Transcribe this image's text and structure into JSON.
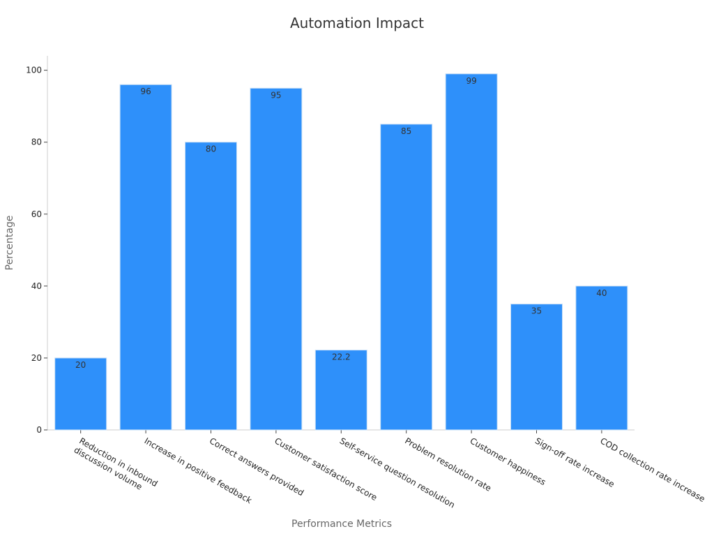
{
  "chart_data": {
    "type": "bar",
    "title": "Automation Impact",
    "xlabel": "Performance Metrics",
    "ylabel": "Percentage",
    "categories": [
      "Reduction in inbound discussion volume",
      "Increase in positive feedback",
      "Correct answers provided",
      "Customer satisfaction score",
      "Self-service question resolution",
      "Problem resolution rate",
      "Customer happiness",
      "Sign-off rate increase",
      "COD collection rate increase"
    ],
    "category_label_lines": [
      [
        "Reduction in inbound",
        "discussion volume"
      ],
      [
        "Increase in positive feedback"
      ],
      [
        "Correct answers provided"
      ],
      [
        "Customer satisfaction score"
      ],
      [
        "Self-service question resolution"
      ],
      [
        "Problem resolution rate"
      ],
      [
        "Customer happiness"
      ],
      [
        "Sign-off rate increase"
      ],
      [
        "COD collection rate increase"
      ]
    ],
    "values": [
      20,
      96,
      80,
      95,
      22.2,
      85,
      99,
      35,
      40
    ],
    "data_labels": [
      "20",
      "96",
      "80",
      "95",
      "22.2",
      "85",
      "99",
      "35",
      "40"
    ],
    "ylim": [
      0,
      104
    ],
    "yticks": [
      0,
      20,
      40,
      60,
      80,
      100
    ],
    "grid": false,
    "legend": "none",
    "bar_color": "#2e90fa"
  }
}
